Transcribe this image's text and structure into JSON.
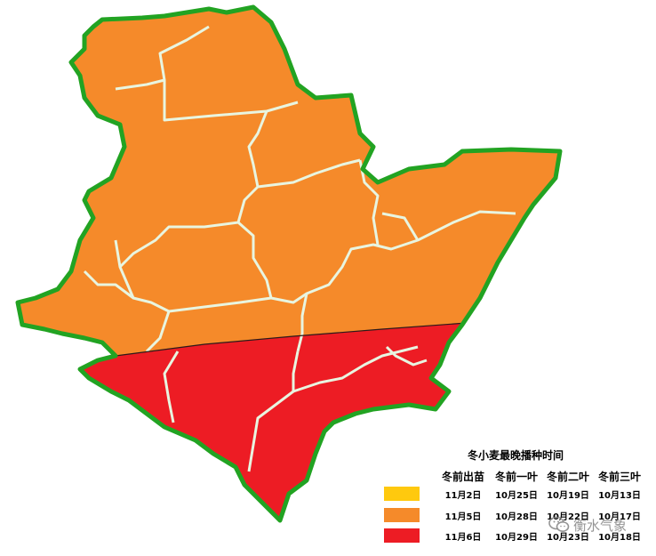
{
  "legend": {
    "title": "冬小麦最晚播种时间",
    "columns": [
      "冬前出苗",
      "冬前一叶",
      "冬前二叶",
      "冬前三叶"
    ],
    "rows": [
      {
        "color": "#ffc90e",
        "values": [
          "11月2日",
          "10月25日",
          "10月19日",
          "10月13日"
        ]
      },
      {
        "color": "#f58a2a",
        "values": [
          "11月5日",
          "10月28日",
          "10月22日",
          "10月17日"
        ]
      },
      {
        "color": "#ed1c24",
        "values": [
          "11月6日",
          "10月29日",
          "10月23日",
          "10月18日"
        ]
      }
    ]
  },
  "map": {
    "north_zone_color": "#f58a2a",
    "south_zone_color": "#ed1c24",
    "border_color": "#22a322"
  },
  "watermark": {
    "text": "衡水气象",
    "icon": "wechat-icon"
  }
}
